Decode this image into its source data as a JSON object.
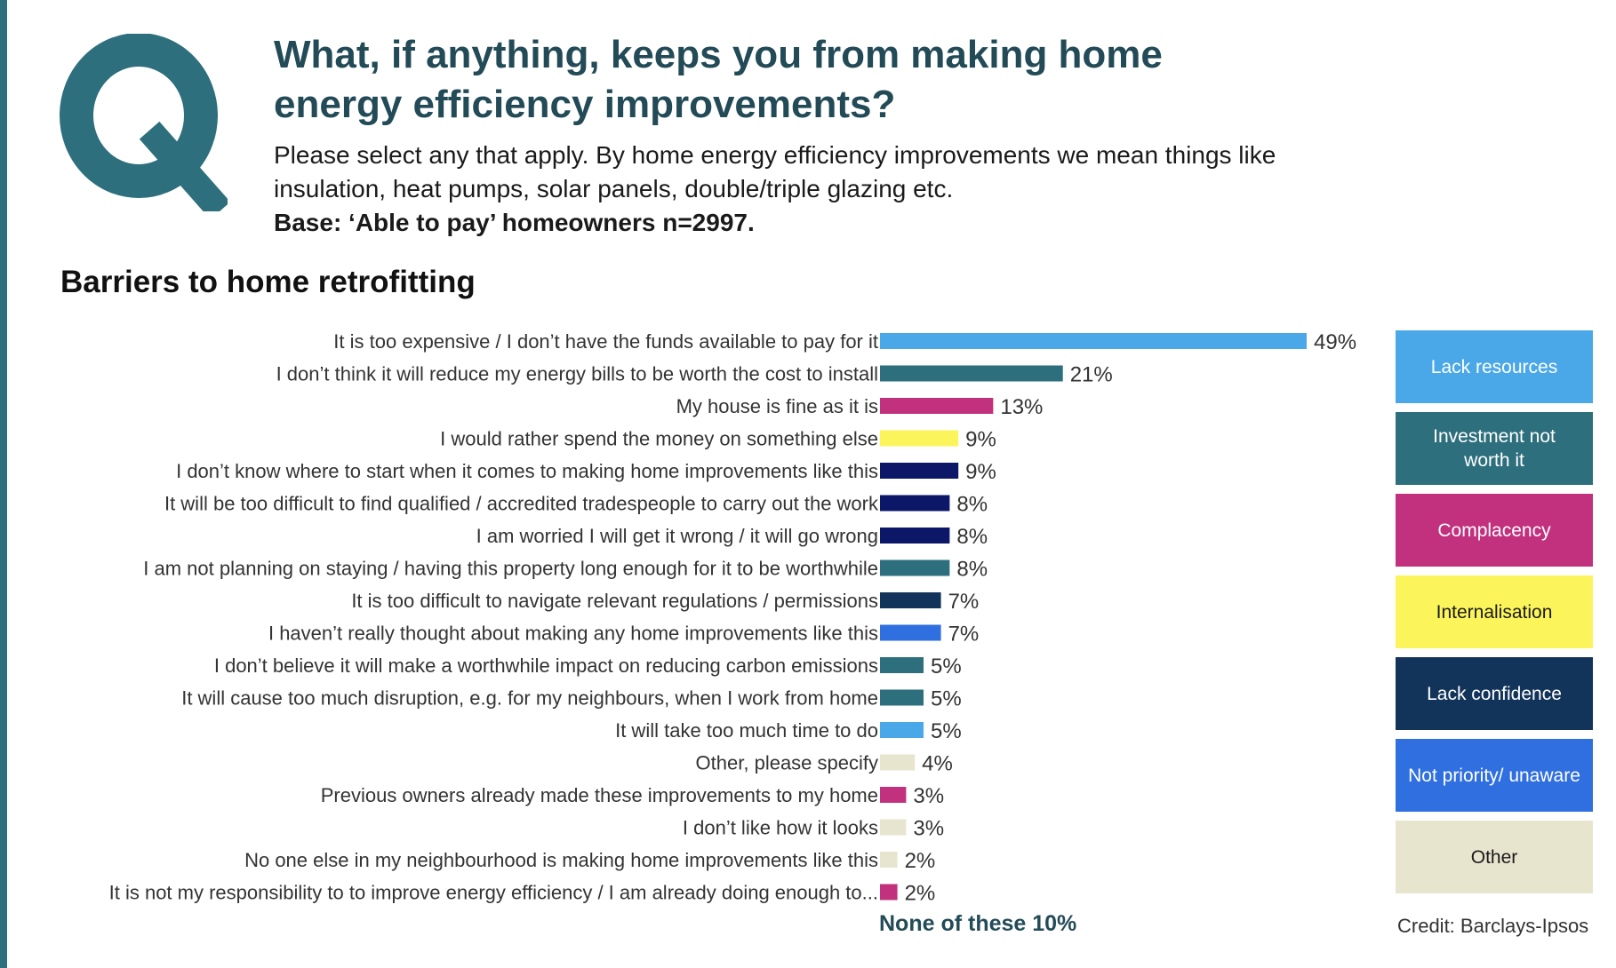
{
  "header": {
    "logo_letter": "Q",
    "title": "What, if anything, keeps you from making home energy efficiency improvements?",
    "subtitle": "Please select any that apply. By home energy efficiency improvements we mean  things like insulation, heat pumps, solar panels, double/triple glazing etc.",
    "base": "Base: ‘Able to pay’ homeowners n=2997."
  },
  "colors": {
    "brand_teal": "#234b57",
    "lack_resources": "#4aa8e8",
    "investment_not_worth_it": "#2e6f7d",
    "complacency": "#c2317e",
    "internalisation": "#fbf55b",
    "lack_confidence": "#0c1768",
    "lack_confidence_legend": "#13345a",
    "not_priority": "#2f6fe0",
    "other": "#e8e5cf"
  },
  "chart_data": {
    "type": "bar",
    "orientation": "horizontal",
    "title": "Barriers to home retrofitting",
    "value_suffix": "%",
    "xlim": [
      0,
      49
    ],
    "grid": false,
    "legend_placement": "right",
    "categories": [
      "It is too expensive / I don’t have the funds available to pay for it",
      "I don’t think it will reduce my energy bills to be worth the cost to install",
      "My house is fine as it is",
      "I would rather spend the money on something else",
      "I don’t know where to start when it comes to  making home improvements like this",
      "It will be too difficult to find qualified / accredited tradespeople to carry out the work",
      "I am worried I will get it wrong / it will go wrong",
      "I am not planning on staying / having this property long enough for it to be worthwhile",
      "It is too difficult to navigate relevant regulations / permissions",
      "I haven’t really thought about making any home improvements like this",
      "I don’t believe it will make a worthwhile impact on  reducing carbon emissions",
      "It will cause too much disruption, e.g. for my neighbours, when I work from home",
      "It will take too much time to do",
      "Other, please specify",
      "Previous owners already made these improvements to my home",
      "I don’t like how it looks",
      "No one else in my neighbourhood is making home improvements like this",
      "It is not my responsibility to to improve energy efficiency / I am already doing enough to..."
    ],
    "values": [
      49,
      21,
      13,
      9,
      9,
      8,
      8,
      8,
      7,
      7,
      5,
      5,
      5,
      4,
      3,
      3,
      2,
      2
    ],
    "bar_groups": [
      "Lack resources",
      "Investment not worth it",
      "Complacency",
      "Internalisation",
      "Lack confidence",
      "Lack confidence",
      "Lack confidence",
      "Investment not worth it",
      "Lack confidence",
      "Not priority/ unaware",
      "Investment not worth it",
      "Investment not worth it",
      "Lack resources",
      "Other",
      "Complacency",
      "Other",
      "Other",
      "Complacency"
    ],
    "bar_colors": [
      "#4aa8e8",
      "#2e6f7d",
      "#c2317e",
      "#fbf55b",
      "#0c1768",
      "#0c1768",
      "#0c1768",
      "#2e6f7d",
      "#13345a",
      "#2f6fe0",
      "#2e6f7d",
      "#2e6f7d",
      "#4aa8e8",
      "#e8e5cf",
      "#c2317e",
      "#e8e5cf",
      "#e8e5cf",
      "#c2317e"
    ],
    "footnote": "None of these 10%",
    "legend": [
      {
        "label": "Lack resources",
        "color": "#4aa8e8",
        "text_color": "#ffffff"
      },
      {
        "label": "Investment not worth it",
        "color": "#2e6f7d",
        "text_color": "#ffffff"
      },
      {
        "label": "Complacency",
        "color": "#c2317e",
        "text_color": "#ffffff"
      },
      {
        "label": "Internalisation",
        "color": "#fbf55b",
        "text_color": "#1a1a1a"
      },
      {
        "label": "Lack confidence",
        "color": "#13345a",
        "text_color": "#ffffff"
      },
      {
        "label": "Not priority/ unaware",
        "color": "#2f6fe0",
        "text_color": "#ffffff"
      },
      {
        "label": "Other",
        "color": "#e8e5cf",
        "text_color": "#1a1a1a"
      }
    ]
  },
  "credit": "Credit: Barclays-Ipsos"
}
